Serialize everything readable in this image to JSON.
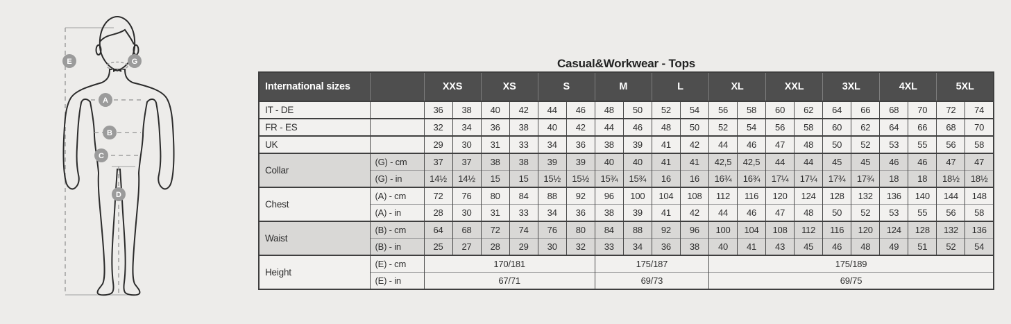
{
  "title": "Casual&Workwear - Tops",
  "colors": {
    "page_bg": "#edecea",
    "header_bg": "#4e4e4e",
    "header_text": "#ffffff",
    "row_light": "#f2f1ef",
    "row_shaded": "#d9d8d6",
    "grid_border": "#3f3f3f",
    "text": "#2d2d2d",
    "figure_line": "#2b2b2b",
    "figure_guide": "#a0a0a0",
    "marker_bg": "#9b9b9b"
  },
  "figure": {
    "markers": [
      "E",
      "G",
      "A",
      "B",
      "C",
      "D"
    ]
  },
  "table": {
    "corner_label": "International sizes",
    "size_groups": [
      "XXS",
      "XS",
      "S",
      "M",
      "L",
      "XL",
      "XXL",
      "3XL",
      "4XL",
      "5XL"
    ],
    "row_groups": [
      {
        "label": "IT - DE",
        "shaded": false,
        "rows": [
          {
            "unit": "",
            "cells": [
              "36",
              "38",
              "40",
              "42",
              "44",
              "46",
              "48",
              "50",
              "52",
              "54",
              "56",
              "58",
              "60",
              "62",
              "64",
              "66",
              "68",
              "70",
              "72",
              "74"
            ]
          }
        ]
      },
      {
        "label": "FR - ES",
        "shaded": false,
        "rows": [
          {
            "unit": "",
            "cells": [
              "32",
              "34",
              "36",
              "38",
              "40",
              "42",
              "44",
              "46",
              "48",
              "50",
              "52",
              "54",
              "56",
              "58",
              "60",
              "62",
              "64",
              "66",
              "68",
              "70"
            ]
          }
        ]
      },
      {
        "label": "UK",
        "shaded": false,
        "rows": [
          {
            "unit": "",
            "cells": [
              "29",
              "30",
              "31",
              "33",
              "34",
              "36",
              "38",
              "39",
              "41",
              "42",
              "44",
              "46",
              "47",
              "48",
              "50",
              "52",
              "53",
              "55",
              "56",
              "58"
            ]
          }
        ]
      },
      {
        "label": "Collar",
        "shaded": true,
        "rows": [
          {
            "unit": "(G) - cm",
            "cells": [
              "37",
              "37",
              "38",
              "38",
              "39",
              "39",
              "40",
              "40",
              "41",
              "41",
              "42,5",
              "42,5",
              "44",
              "44",
              "45",
              "45",
              "46",
              "46",
              "47",
              "47"
            ]
          },
          {
            "unit": "(G) - in",
            "cells": [
              "14½",
              "14½",
              "15",
              "15",
              "15½",
              "15½",
              "15¾",
              "15¾",
              "16",
              "16",
              "16¾",
              "16¾",
              "17¼",
              "17¼",
              "17¾",
              "17¾",
              "18",
              "18",
              "18½",
              "18½"
            ]
          }
        ]
      },
      {
        "label": "Chest",
        "shaded": false,
        "rows": [
          {
            "unit": "(A) - cm",
            "cells": [
              "72",
              "76",
              "80",
              "84",
              "88",
              "92",
              "96",
              "100",
              "104",
              "108",
              "112",
              "116",
              "120",
              "124",
              "128",
              "132",
              "136",
              "140",
              "144",
              "148"
            ]
          },
          {
            "unit": "(A) - in",
            "cells": [
              "28",
              "30",
              "31",
              "33",
              "34",
              "36",
              "38",
              "39",
              "41",
              "42",
              "44",
              "46",
              "47",
              "48",
              "50",
              "52",
              "53",
              "55",
              "56",
              "58"
            ]
          }
        ]
      },
      {
        "label": "Waist",
        "shaded": true,
        "rows": [
          {
            "unit": "(B) - cm",
            "cells": [
              "64",
              "68",
              "72",
              "74",
              "76",
              "80",
              "84",
              "88",
              "92",
              "96",
              "100",
              "104",
              "108",
              "112",
              "116",
              "120",
              "124",
              "128",
              "132",
              "136"
            ]
          },
          {
            "unit": "(B) - in",
            "cells": [
              "25",
              "27",
              "28",
              "29",
              "30",
              "32",
              "33",
              "34",
              "36",
              "38",
              "40",
              "41",
              "43",
              "45",
              "46",
              "48",
              "49",
              "51",
              "52",
              "54"
            ]
          }
        ]
      },
      {
        "label": "Height",
        "shaded": false,
        "rows": [
          {
            "unit": "(E) - cm",
            "cells": [
              {
                "t": "170/181",
                "s": 6
              },
              {
                "t": "175/187",
                "s": 4
              },
              {
                "t": "175/189",
                "s": 10
              }
            ]
          },
          {
            "unit": "(E) - in",
            "cells": [
              {
                "t": "67/71",
                "s": 6
              },
              {
                "t": "69/73",
                "s": 4
              },
              {
                "t": "69/75",
                "s": 10
              }
            ]
          }
        ]
      }
    ]
  }
}
